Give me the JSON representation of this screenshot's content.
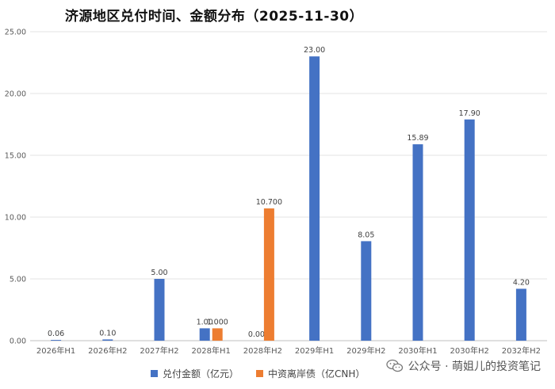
{
  "chart_data": {
    "type": "bar",
    "title": "济源地区兑付时间、金额分布（2025-11-30）",
    "categories": [
      "2026年H1",
      "2026年H2",
      "2027年H2",
      "2028年H1",
      "2028年H2",
      "2029年H1",
      "2029年H2",
      "2030年H1",
      "2030年H2",
      "2032年H2"
    ],
    "series": [
      {
        "name": "兑付金额（亿元）",
        "color": "#4472C4",
        "values": [
          0.06,
          0.1,
          5.0,
          1.0,
          0.0,
          23.0,
          8.05,
          15.89,
          17.9,
          4.2
        ],
        "labels": [
          "0.06",
          "0.10",
          "5.00",
          "1.00",
          "0.00",
          "23.00",
          "8.05",
          "15.89",
          "17.90",
          "4.20"
        ]
      },
      {
        "name": "中资离岸债（亿CNH）",
        "color": "#ED7D31",
        "values": [
          null,
          null,
          null,
          1.0,
          10.7,
          null,
          null,
          null,
          null,
          null
        ],
        "labels": [
          null,
          null,
          null,
          "1.000",
          "10.700",
          null,
          null,
          null,
          null,
          null
        ]
      }
    ],
    "ylim": [
      0,
      25
    ],
    "yticks": [
      "0.00",
      "5.00",
      "10.00",
      "15.00",
      "20.00",
      "25.00"
    ],
    "grid": true,
    "legend": "bottom"
  },
  "watermark": {
    "text": "公众号 · 萌姐儿的投资笔记",
    "icon": "wechat-icon"
  }
}
